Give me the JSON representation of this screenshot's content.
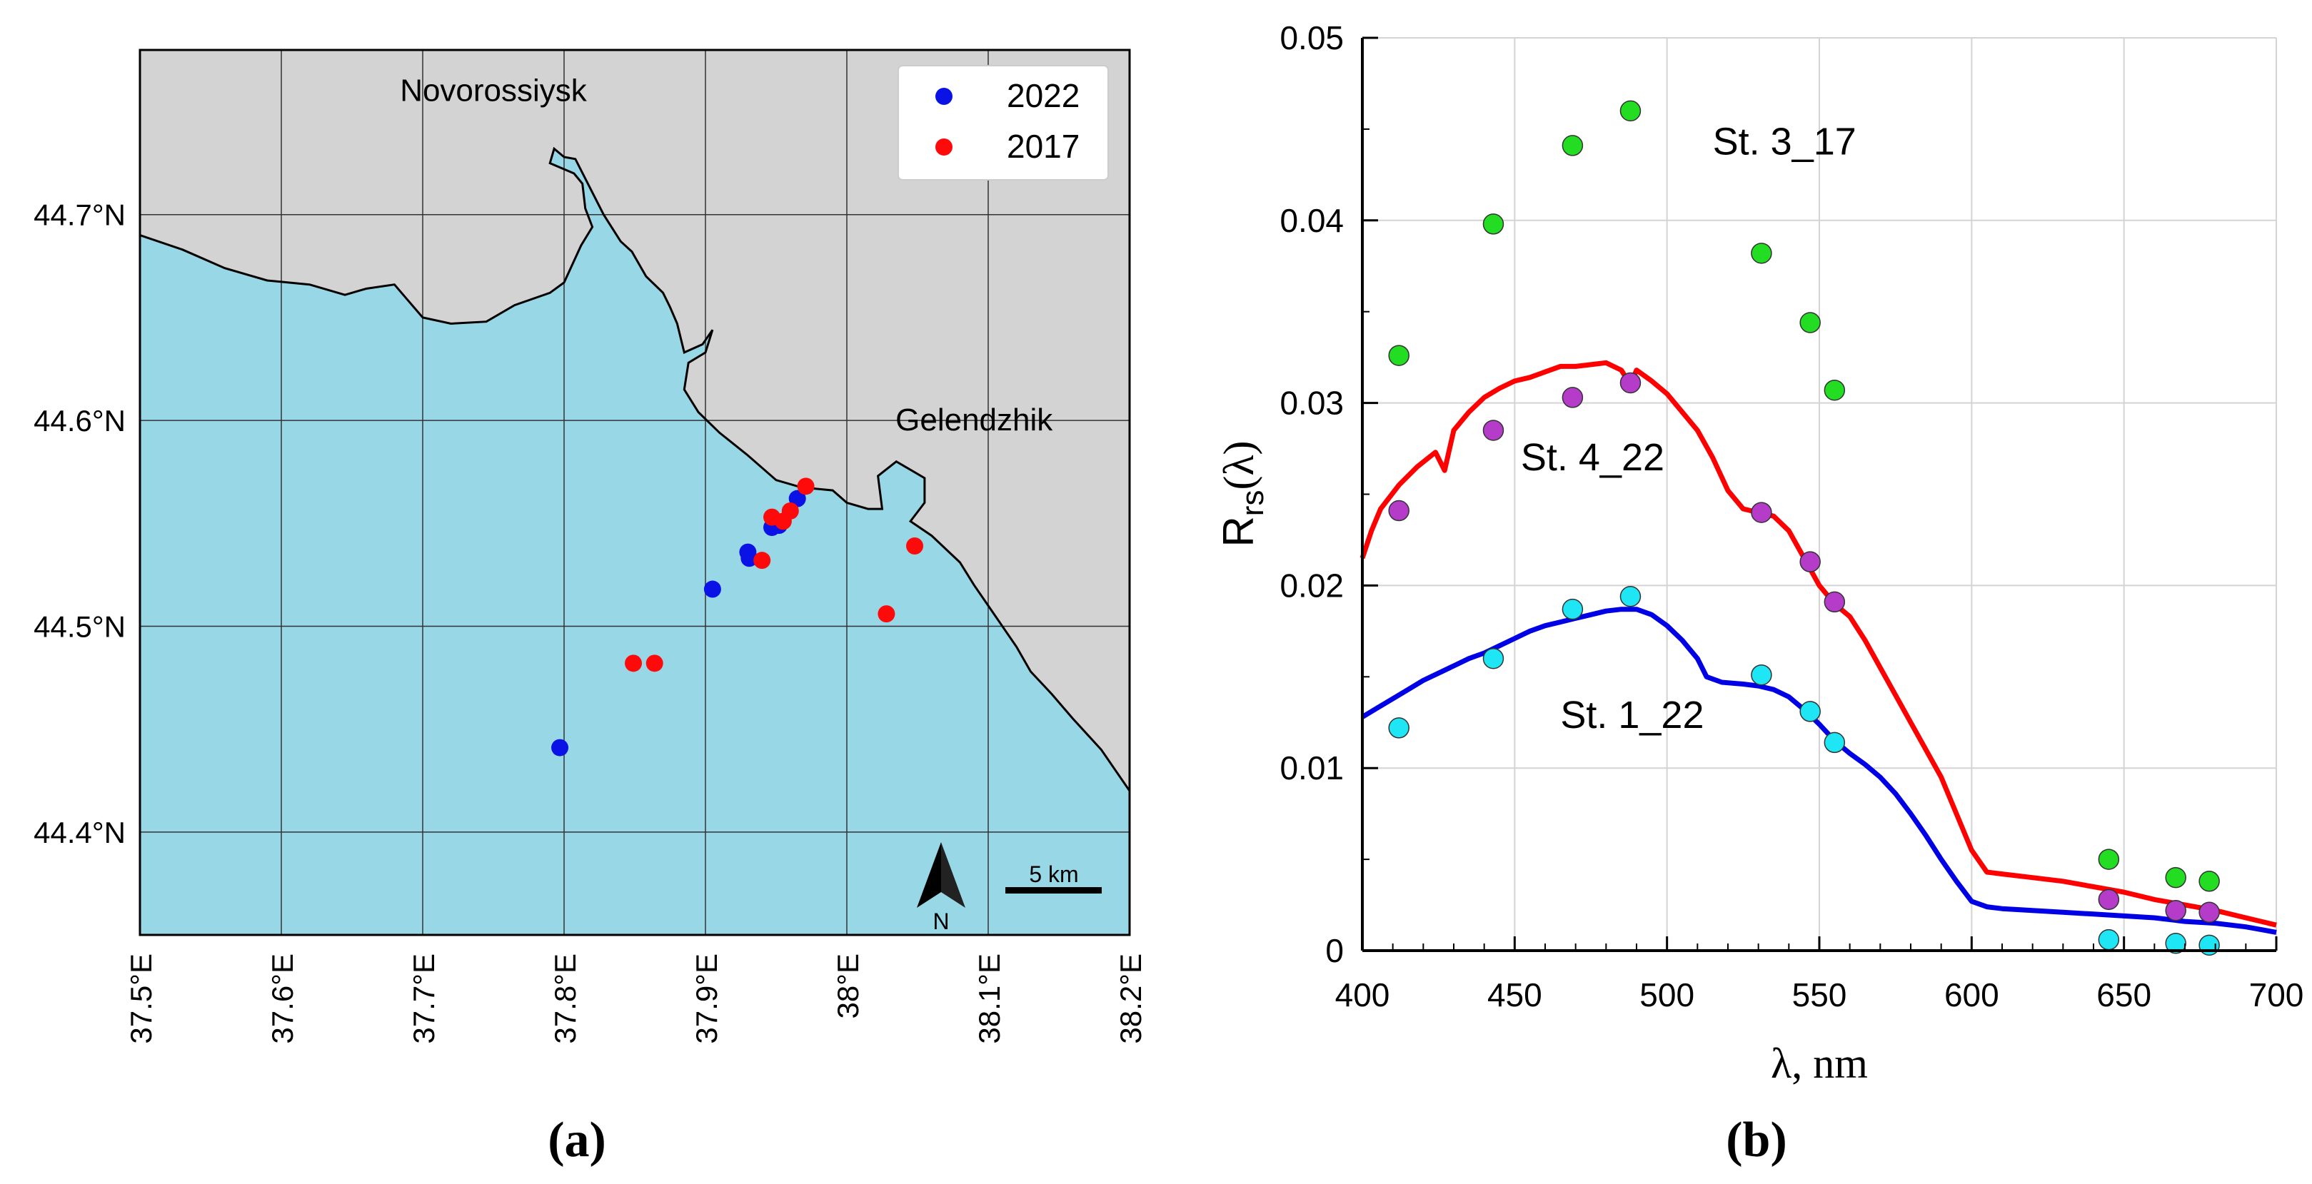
{
  "chart_data": [
    {
      "type": "map",
      "panel_label": "(a)",
      "x_ticks": [
        37.5,
        37.6,
        37.7,
        37.8,
        37.9,
        38.0,
        38.1,
        38.2
      ],
      "x_tick_labels": [
        "37.5°E",
        "37.6°E",
        "37.7°E",
        "37.8°E",
        "37.9°E",
        "38°E",
        "38.1°E",
        "38.2°E"
      ],
      "y_ticks": [
        44.4,
        44.5,
        44.6,
        44.7
      ],
      "y_tick_labels": [
        "44.4°N",
        "44.5°N",
        "44.6°N",
        "44.7°N"
      ],
      "xlim": [
        37.5,
        38.2
      ],
      "ylim": [
        44.35,
        44.78
      ],
      "place_labels": [
        {
          "name": "Novorossiysk",
          "lon": 37.75,
          "lat": 44.76
        },
        {
          "name": "Gelendzhik",
          "lon": 38.09,
          "lat": 44.6
        }
      ],
      "coastline": [
        [
          37.5,
          44.69
        ],
        [
          37.53,
          44.683
        ],
        [
          37.56,
          44.674
        ],
        [
          37.59,
          44.668
        ],
        [
          37.62,
          44.666
        ],
        [
          37.645,
          44.661
        ],
        [
          37.66,
          44.664
        ],
        [
          37.68,
          44.666
        ],
        [
          37.69,
          44.658
        ],
        [
          37.7,
          44.65
        ],
        [
          37.72,
          44.647
        ],
        [
          37.745,
          44.648
        ],
        [
          37.765,
          44.656
        ],
        [
          37.79,
          44.662
        ],
        [
          37.8,
          44.667
        ],
        [
          37.812,
          44.685
        ],
        [
          37.82,
          44.694
        ],
        [
          37.815,
          44.703
        ],
        [
          37.813,
          44.715
        ],
        [
          37.807,
          44.72
        ],
        [
          37.79,
          44.725
        ],
        [
          37.793,
          44.732
        ],
        [
          37.8,
          44.728
        ],
        [
          37.808,
          44.727
        ],
        [
          37.828,
          44.7
        ],
        [
          37.84,
          44.687
        ],
        [
          37.848,
          44.682
        ],
        [
          37.858,
          44.67
        ],
        [
          37.87,
          44.662
        ],
        [
          37.875,
          44.655
        ],
        [
          37.88,
          44.647
        ],
        [
          37.885,
          44.633
        ],
        [
          37.898,
          44.637
        ],
        [
          37.905,
          44.644
        ],
        [
          37.9,
          44.633
        ],
        [
          37.888,
          44.628
        ],
        [
          37.885,
          44.615
        ],
        [
          37.895,
          44.604
        ],
        [
          37.91,
          44.594
        ],
        [
          37.93,
          44.583
        ],
        [
          37.95,
          44.571
        ],
        [
          37.965,
          44.568
        ],
        [
          37.975,
          44.567
        ],
        [
          37.99,
          44.566
        ],
        [
          38.0,
          44.56
        ],
        [
          38.015,
          44.557
        ],
        [
          38.025,
          44.557
        ],
        [
          38.022,
          44.573
        ],
        [
          38.035,
          44.58
        ],
        [
          38.055,
          44.572
        ],
        [
          38.055,
          44.56
        ],
        [
          38.045,
          44.551
        ],
        [
          38.06,
          44.544
        ],
        [
          38.08,
          44.531
        ],
        [
          38.09,
          44.52
        ],
        [
          38.105,
          44.505
        ],
        [
          38.12,
          44.49
        ],
        [
          38.13,
          44.478
        ],
        [
          38.145,
          44.467
        ],
        [
          38.16,
          44.455
        ],
        [
          38.18,
          44.44
        ],
        [
          38.2,
          44.42
        ]
      ],
      "legend": [
        {
          "label": "2022",
          "color": "#0a12e6"
        },
        {
          "label": "2017",
          "color": "#ff0a0a"
        }
      ],
      "stations_2022": [
        {
          "lon": 37.797,
          "lat": 44.441
        },
        {
          "lon": 37.905,
          "lat": 44.518
        },
        {
          "lon": 37.93,
          "lat": 44.536
        },
        {
          "lon": 37.931,
          "lat": 44.533
        },
        {
          "lon": 37.947,
          "lat": 44.548
        },
        {
          "lon": 37.952,
          "lat": 44.549
        },
        {
          "lon": 37.965,
          "lat": 44.562
        }
      ],
      "stations_2017": [
        {
          "lon": 37.849,
          "lat": 44.482
        },
        {
          "lon": 37.864,
          "lat": 44.482
        },
        {
          "lon": 37.94,
          "lat": 44.532
        },
        {
          "lon": 37.947,
          "lat": 44.553
        },
        {
          "lon": 37.955,
          "lat": 44.551
        },
        {
          "lon": 37.96,
          "lat": 44.556
        },
        {
          "lon": 37.971,
          "lat": 44.568
        },
        {
          "lon": 38.028,
          "lat": 44.506
        },
        {
          "lon": 38.048,
          "lat": 44.539
        }
      ],
      "north_arrow_label": "N",
      "scale_bar_label": "5 km",
      "colors": {
        "sea": "#98d8e6",
        "land": "#d3d3d3"
      }
    },
    {
      "type": "line+scatter",
      "panel_label": "(b)",
      "xlabel": "λ, nm",
      "ylabel_main": "R",
      "ylabel_sub": "rs",
      "ylabel_tail": "(λ)",
      "xlim": [
        400,
        700
      ],
      "ylim": [
        0,
        0.05
      ],
      "x_ticks": [
        400,
        450,
        500,
        550,
        600,
        650,
        700
      ],
      "x_tick_labels": [
        "400",
        "450",
        "500",
        "550",
        "600",
        "650",
        "700"
      ],
      "y_ticks": [
        0,
        0.01,
        0.02,
        0.03,
        0.04,
        0.05
      ],
      "y_tick_labels": [
        "0",
        "0.01",
        "0.02",
        "0.03",
        "0.04",
        "0.05"
      ],
      "lines": [
        {
          "name": "St. 4_22",
          "color": "#ff0000",
          "x": [
            400,
            403,
            406,
            412,
            418,
            424,
            427,
            430,
            435,
            440,
            445,
            450,
            455,
            460,
            465,
            470,
            475,
            480,
            485,
            488,
            490,
            495,
            500,
            505,
            510,
            515,
            520,
            525,
            530,
            535,
            540,
            545,
            550,
            555,
            560,
            565,
            570,
            575,
            580,
            585,
            590,
            595,
            600,
            605,
            610,
            620,
            630,
            640,
            650,
            660,
            670,
            680,
            690,
            700
          ],
          "y": [
            0.0215,
            0.023,
            0.0242,
            0.0255,
            0.0265,
            0.0273,
            0.0263,
            0.0285,
            0.0295,
            0.0303,
            0.0308,
            0.0312,
            0.0314,
            0.0317,
            0.032,
            0.032,
            0.0321,
            0.0322,
            0.0318,
            0.031,
            0.0318,
            0.0312,
            0.0305,
            0.0295,
            0.0285,
            0.027,
            0.0252,
            0.0242,
            0.024,
            0.0238,
            0.023,
            0.0215,
            0.02,
            0.019,
            0.0183,
            0.017,
            0.0155,
            0.014,
            0.0125,
            0.011,
            0.0095,
            0.0075,
            0.0055,
            0.0043,
            0.0042,
            0.004,
            0.0038,
            0.0035,
            0.0032,
            0.0028,
            0.0025,
            0.0022,
            0.0018,
            0.0014
          ]
        },
        {
          "name": "St. 1_22",
          "color": "#0000e6",
          "x": [
            400,
            405,
            410,
            415,
            420,
            425,
            430,
            435,
            440,
            445,
            450,
            455,
            460,
            465,
            470,
            475,
            480,
            485,
            490,
            495,
            500,
            505,
            510,
            513,
            518,
            525,
            530,
            535,
            540,
            545,
            550,
            555,
            560,
            565,
            570,
            575,
            580,
            585,
            590,
            595,
            600,
            605,
            610,
            620,
            630,
            640,
            650,
            660,
            670,
            680,
            690,
            700
          ],
          "y": [
            0.0128,
            0.0133,
            0.0138,
            0.0143,
            0.0148,
            0.0152,
            0.0156,
            0.016,
            0.0163,
            0.0167,
            0.0171,
            0.0175,
            0.0178,
            0.018,
            0.0182,
            0.0184,
            0.0186,
            0.0187,
            0.0187,
            0.0184,
            0.0178,
            0.017,
            0.016,
            0.015,
            0.0147,
            0.0146,
            0.0145,
            0.0143,
            0.0139,
            0.0132,
            0.0124,
            0.0115,
            0.0108,
            0.0102,
            0.0095,
            0.0086,
            0.0075,
            0.0063,
            0.005,
            0.0038,
            0.0027,
            0.0024,
            0.0023,
            0.0022,
            0.0021,
            0.002,
            0.0019,
            0.0018,
            0.0016,
            0.0015,
            0.0013,
            0.001
          ]
        }
      ],
      "point_series": [
        {
          "name": "St. 3_17",
          "color": "#22dd22",
          "x": [
            412,
            443,
            469,
            488,
            531,
            547,
            555,
            645,
            667,
            678
          ],
          "y": [
            0.0326,
            0.0398,
            0.0441,
            0.046,
            0.0382,
            0.0344,
            0.0307,
            0.005,
            0.004,
            0.0038
          ]
        },
        {
          "name": "St. 4_22 points",
          "color": "#b43cc8",
          "x": [
            412,
            443,
            469,
            488,
            531,
            547,
            555,
            645,
            667,
            678
          ],
          "y": [
            0.0241,
            0.0285,
            0.0303,
            0.0311,
            0.024,
            0.0213,
            0.0191,
            0.0028,
            0.0022,
            0.0021
          ]
        },
        {
          "name": "St. 1_22 points",
          "color": "#1ee6f5",
          "x": [
            412,
            443,
            469,
            488,
            531,
            547,
            555,
            645,
            667,
            678
          ],
          "y": [
            0.0122,
            0.016,
            0.0187,
            0.0194,
            0.0151,
            0.0131,
            0.0114,
            0.0006,
            0.0004,
            0.0003
          ]
        }
      ],
      "annotations": [
        {
          "text": "St. 3_17",
          "x": 515,
          "y": 0.0436
        },
        {
          "text": "St. 4_22",
          "x": 452,
          "y": 0.0263
        },
        {
          "text": "St. 1_22",
          "x": 465,
          "y": 0.0122
        }
      ]
    }
  ]
}
